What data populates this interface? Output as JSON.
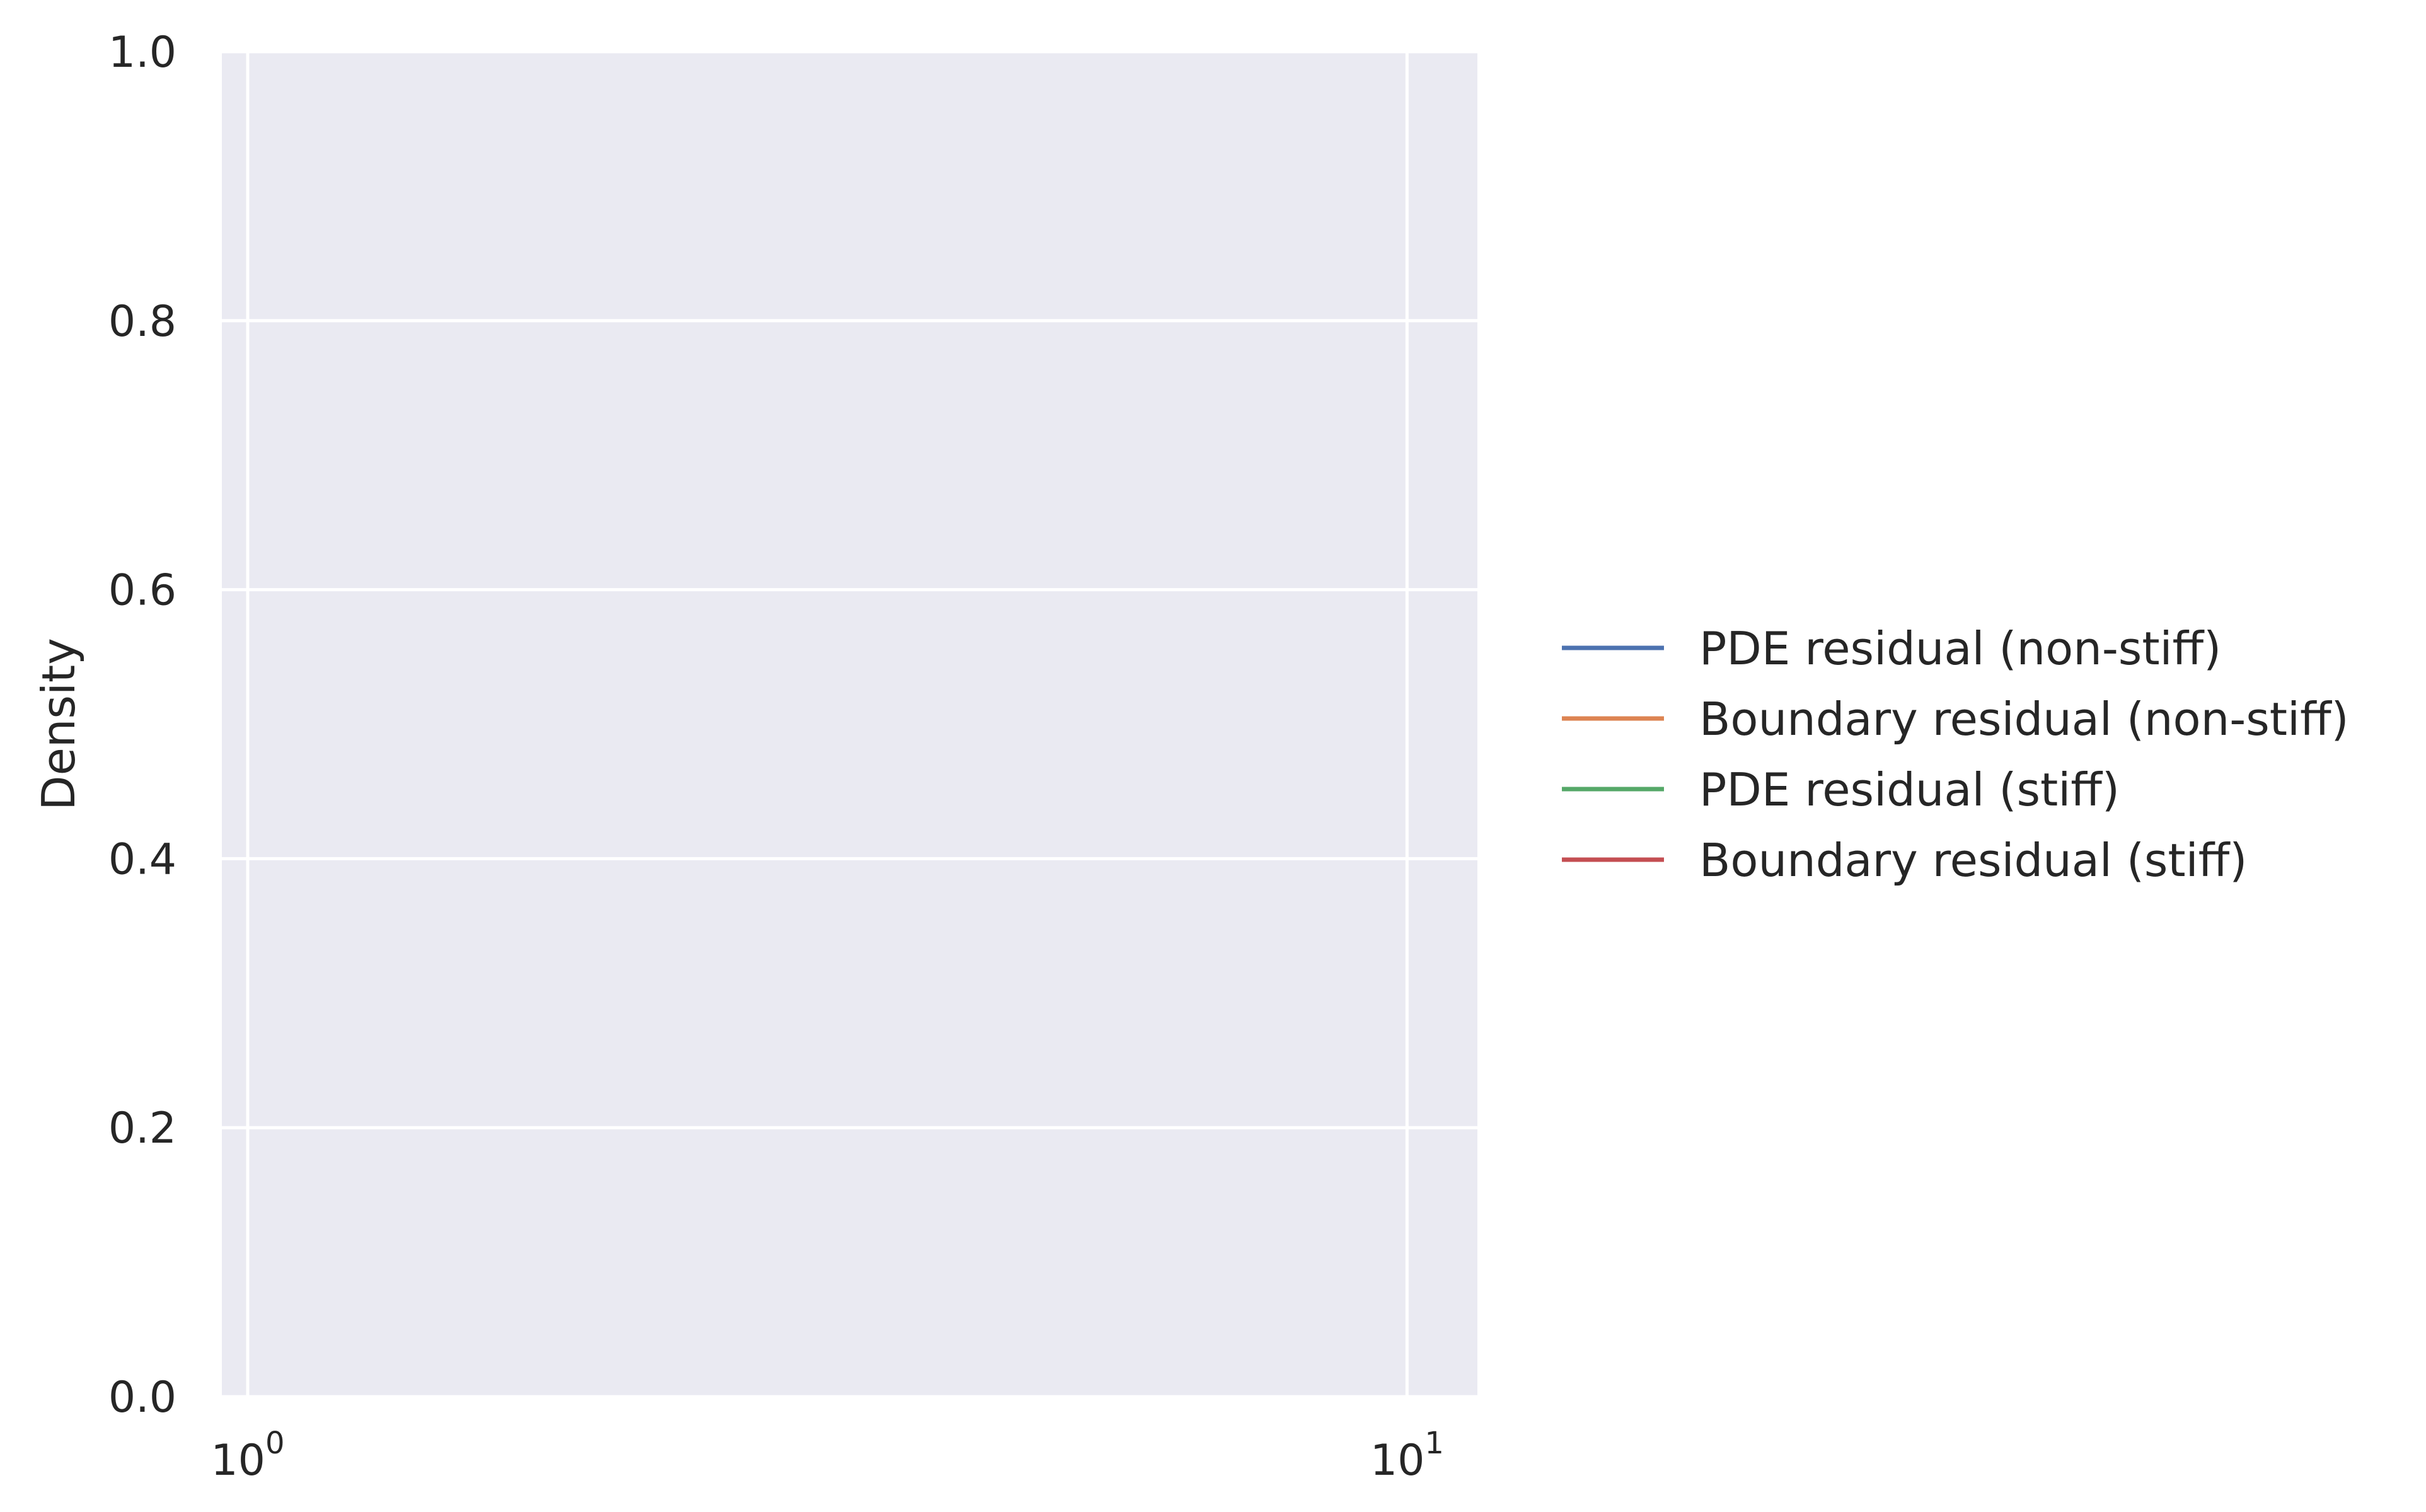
{
  "chart_data": {
    "type": "line",
    "title": "",
    "xlabel": "",
    "ylabel": "Density",
    "xscale": "log",
    "xlim": [
      0.95,
      11.5
    ],
    "ylim": [
      0.0,
      1.0
    ],
    "xticks": [
      {
        "base": "10",
        "exp": "0",
        "value": 1
      },
      {
        "base": "10",
        "exp": "1",
        "value": 10
      }
    ],
    "yticks": [
      0.0,
      0.2,
      0.4,
      0.6,
      0.8,
      1.0
    ],
    "ytick_labels": [
      "0.0",
      "0.2",
      "0.4",
      "0.6",
      "0.8",
      "1.0"
    ],
    "grid": true,
    "background": "#eaeaf2",
    "legend_position": "center-right outside",
    "series": [
      {
        "name": "PDE residual (non-stiff)",
        "color": "#4c72b0",
        "x": [],
        "y": []
      },
      {
        "name": "Boundary residual (non-stiff)",
        "color": "#dd8452",
        "x": [],
        "y": []
      },
      {
        "name": "PDE residual (stiff)",
        "color": "#55a868",
        "x": [],
        "y": []
      },
      {
        "name": "Boundary residual (stiff)",
        "color": "#c44e52",
        "x": [],
        "y": []
      }
    ]
  }
}
